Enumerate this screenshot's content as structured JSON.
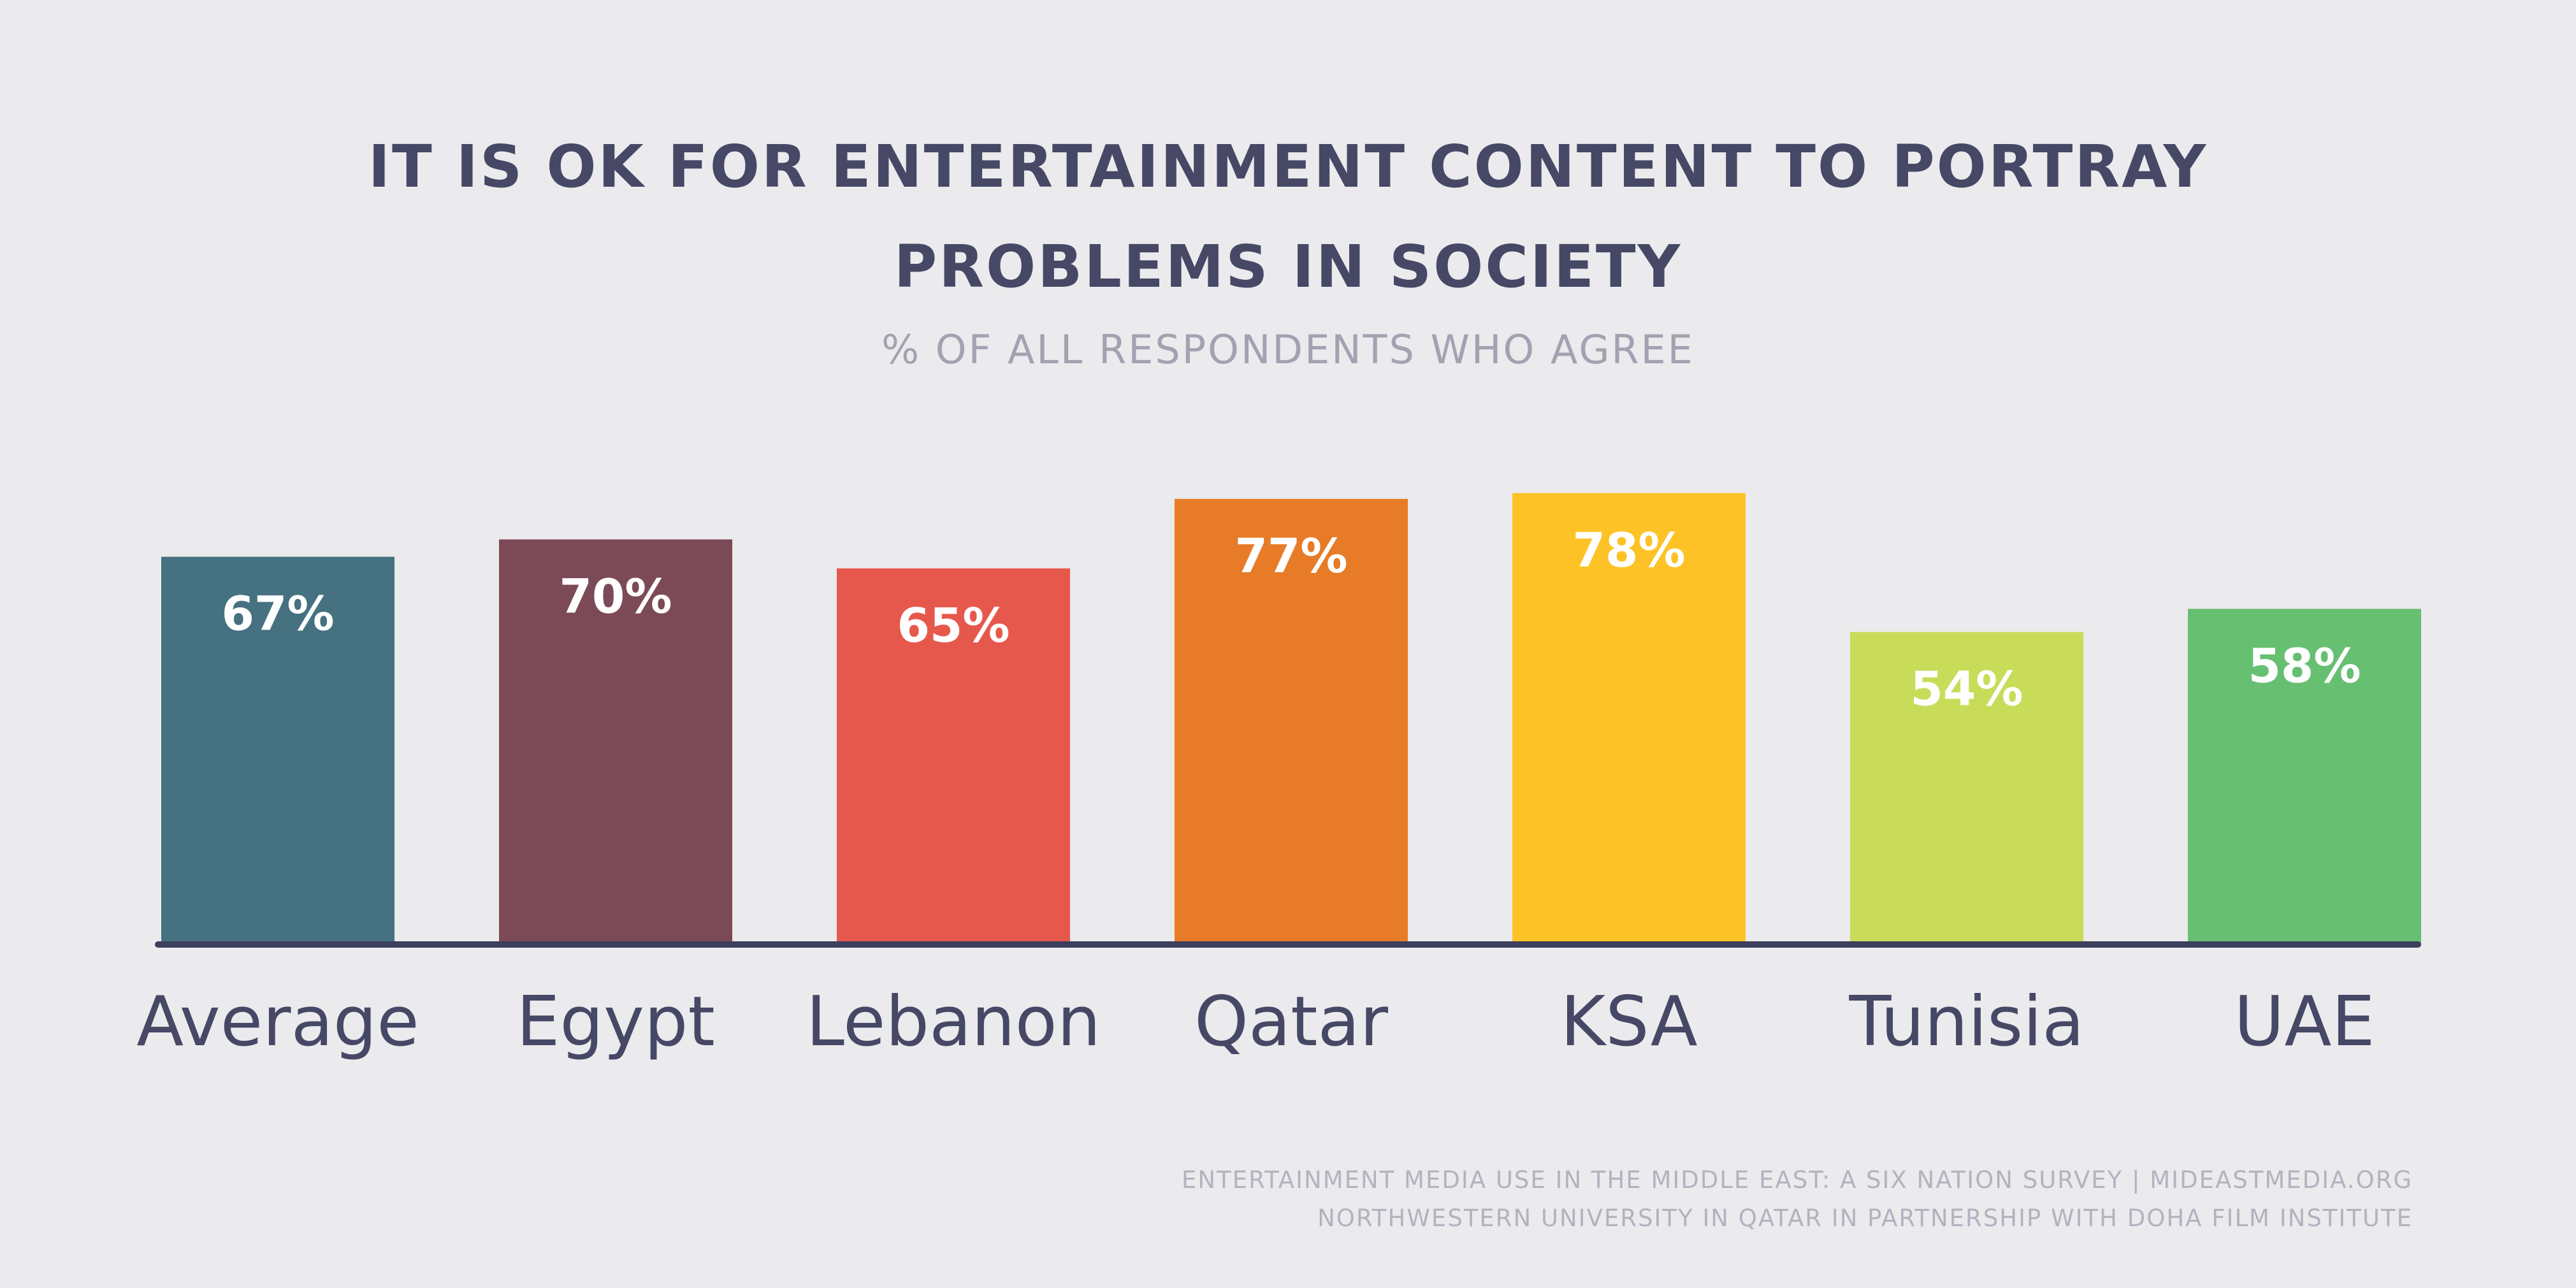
{
  "title_lines": [
    "IT IS OK FOR ENTERTAINMENT CONTENT TO PORTRAY",
    "PROBLEMS IN SOCIETY"
  ],
  "subtitle": "% OF ALL RESPONDENTS WHO AGREE",
  "source_lines": [
    "ENTERTAINMENT MEDIA USE IN THE MIDDLE EAST: A SIX NATION SURVEY | MIDEASTMEDIA.ORG",
    "NORTHWESTERN UNIVERSITY IN QATAR IN PARTNERSHIP WITH DOHA FILM INSTITUTE"
  ],
  "colors": {
    "background": "#ebeaed",
    "title": "#464866",
    "subtitle": "#a3a2b1",
    "baseline": "#3d3f5c",
    "category_label": "#464866",
    "value_label": "#ffffff",
    "source": "#b3b2bf"
  },
  "chart_data": {
    "type": "bar",
    "title": "IT IS OK FOR ENTERTAINMENT CONTENT TO PORTRAY PROBLEMS IN SOCIETY",
    "subtitle": "% OF ALL RESPONDENTS WHO AGREE",
    "categories": [
      "Average",
      "Egypt",
      "Lebanon",
      "Qatar",
      "KSA",
      "Tunisia",
      "UAE"
    ],
    "values": [
      67,
      70,
      65,
      77,
      78,
      54,
      58
    ],
    "value_labels": [
      "67%",
      "70%",
      "65%",
      "77%",
      "78%",
      "54%",
      "58%"
    ],
    "bar_colors": [
      "#457180",
      "#7c4a57",
      "#e7584c",
      "#e77b27",
      "#fdc326",
      "#c9dc5a",
      "#67bf72"
    ],
    "ylim": [
      0,
      100
    ],
    "grid": false,
    "legend": "none"
  }
}
